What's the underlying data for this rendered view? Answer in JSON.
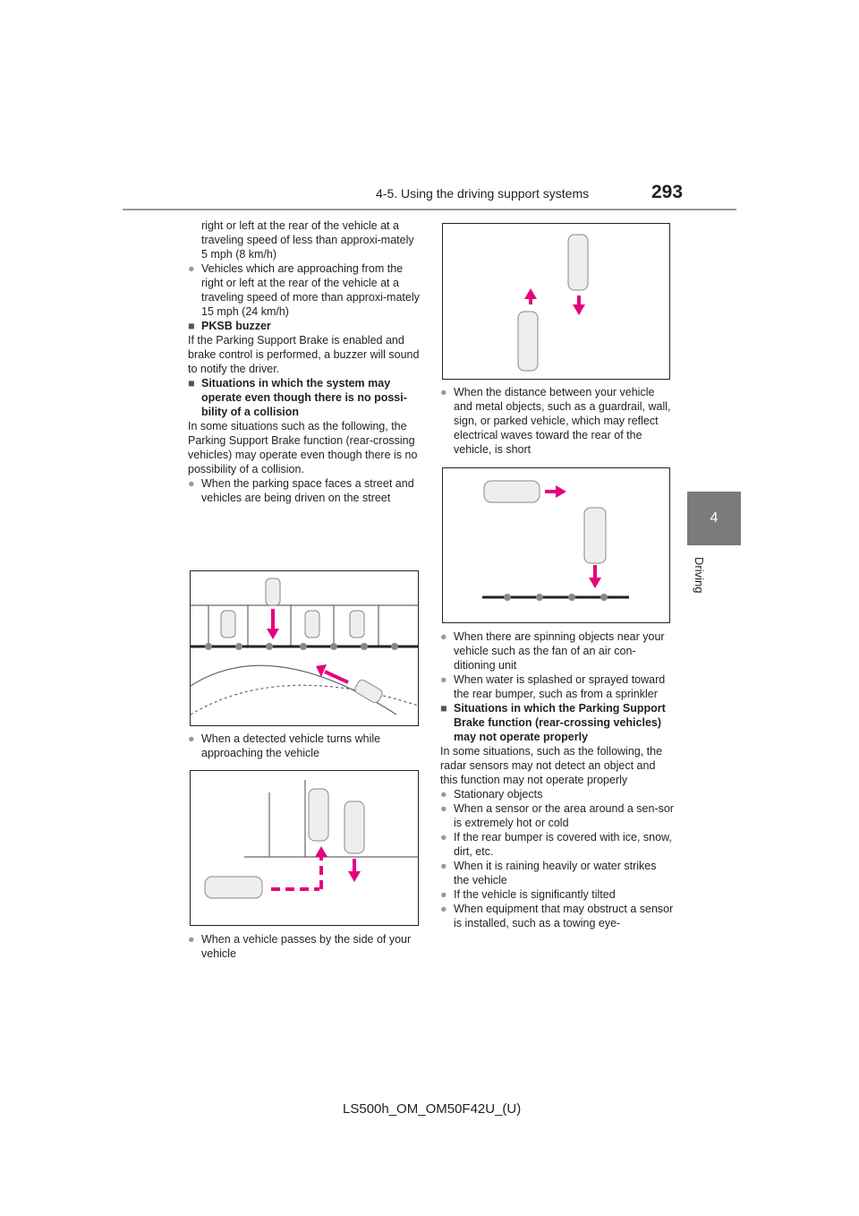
{
  "header": {
    "section_title": "4-5. Using the driving support systems",
    "page_number": "293"
  },
  "side_tab": {
    "chapter_number": "4",
    "chapter_name": "Driving"
  },
  "left_column": {
    "item0_cont": "right or left at the rear of the vehicle at a traveling speed of less than approxi-mately 5 mph (8 km/h)",
    "item1": "Vehicles which are approaching from the right or left at the rear of the vehicle at a traveling speed of more than approxi-mately 15 mph (24 km/h)",
    "heading_buzzer": "PKSB buzzer",
    "buzzer_body": "If the Parking Support Brake is enabled and brake control is performed, a buzzer will sound to notify the driver.",
    "heading_no_collision": "Situations in which the system may operate even though there is no possi-bility of a collision",
    "no_collision_body": "In some situations such as the following, the Parking Support Brake function (rear-crossing vehicles) may operate even though there is no possibility of a collision.",
    "item_street": "When the parking space faces a street and vehicles are being driven on the street",
    "item_turns": "When a detected vehicle turns while approaching the vehicle",
    "item_passes": "When a vehicle passes by the side of your vehicle"
  },
  "right_column": {
    "item_distance": "When the distance between your vehicle and metal objects, such as a guardrail, wall, sign, or parked vehicle, which may reflect electrical waves toward the rear of the vehicle, is short",
    "item_spinning": "When there are spinning objects near your vehicle such as the fan of an air con-ditioning unit",
    "item_water": "When water is splashed or sprayed toward the rear bumper, such as from a sprinkler",
    "heading_not_operate": "Situations in which the Parking Support Brake function (rear-crossing vehicles) may not operate properly",
    "not_operate_body": "In some situations, such as the following, the radar sensors may not detect an object and this function may not operate properly",
    "items": [
      "Stationary objects",
      "When a sensor or the area around a sen-sor is extremely hot or cold",
      "If the rear bumper is covered with ice, snow, dirt, etc.",
      "When it is raining heavily or water strikes the vehicle",
      "If the vehicle is significantly tilted",
      "When equipment that may obstruct a sensor is installed, such as a towing eye-"
    ]
  },
  "footer": {
    "code": "LS500h_OM_OM50F42U_(U)"
  },
  "colors": {
    "arrow": "#e6007e",
    "rule": "#9a9a9a",
    "tab": "#7b7b7d"
  }
}
